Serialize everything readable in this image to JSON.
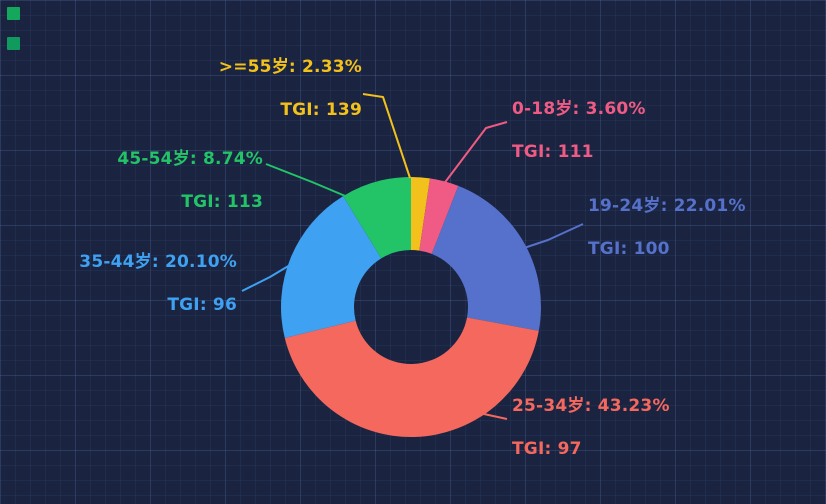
{
  "chart_data": {
    "type": "pie",
    "subtype": "donut",
    "title": "",
    "legend": "none",
    "start_angle": "top",
    "direction": "clockwise",
    "units": "%",
    "slices": [
      {
        "name": ">=55岁",
        "value": 2.33,
        "percent_label": ">=55岁: 2.33%",
        "tgi": 139,
        "tgi_label": "TGI: 139",
        "color": "#f3c11b"
      },
      {
        "name": "0-18岁",
        "value": 3.6,
        "percent_label": "0-18岁: 3.60%",
        "tgi": 111,
        "tgi_label": "TGI: 111",
        "color": "#ef5b84"
      },
      {
        "name": "19-24岁",
        "value": 22.01,
        "percent_label": "19-24岁: 22.01%",
        "tgi": 100,
        "tgi_label": "TGI: 100",
        "color": "#5671cb"
      },
      {
        "name": "25-34岁",
        "value": 43.23,
        "percent_label": "25-34岁: 43.23%",
        "tgi": 97,
        "tgi_label": "TGI: 97",
        "color": "#f5685d"
      },
      {
        "name": "35-44岁",
        "value": 20.1,
        "percent_label": "35-44岁: 20.10%",
        "tgi": 96,
        "tgi_label": "TGI: 96",
        "color": "#3ea1f2"
      },
      {
        "name": "45-54岁",
        "value": 8.74,
        "percent_label": "45-54岁: 8.74%",
        "tgi": 113,
        "tgi_label": "TGI: 113",
        "color": "#23c368"
      }
    ]
  },
  "decorations": {
    "marker_top_color": "#14a85c",
    "marker_bottom_color": "#109a5e"
  }
}
